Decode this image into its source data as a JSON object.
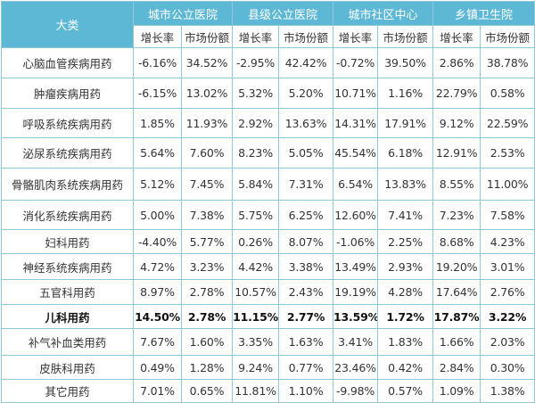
{
  "header": {
    "category_label": "大类",
    "groups": [
      "城市公立医院",
      "县级公立医院",
      "城市社区中心",
      "乡镇卫生院"
    ],
    "sub_labels": [
      "增长率",
      "市场份额"
    ],
    "color": "#5db8d6"
  },
  "rows": [
    {
      "name": "心脑血管疾病用药",
      "values": [
        "-6.16%",
        "34.52%",
        "-2.95%",
        "42.42%",
        "-0.72%",
        "39.50%",
        "2.86%",
        "38.78%"
      ]
    },
    {
      "name": "肿瘤疾病用药",
      "values": [
        "-6.15%",
        "13.02%",
        "5.32%",
        "5.20%",
        "10.71%",
        "1.16%",
        "22.79%",
        "0.58%"
      ]
    },
    {
      "name": "呼吸系统疾病用药",
      "values": [
        "1.85%",
        "11.93%",
        "2.92%",
        "13.63%",
        "14.31%",
        "17.91%",
        "9.12%",
        "22.59%"
      ]
    },
    {
      "name": "泌尿系统疾病用药",
      "values": [
        "5.64%",
        "7.60%",
        "8.23%",
        "5.05%",
        "45.54%",
        "6.18%",
        "12.91%",
        "2.53%"
      ]
    },
    {
      "name": "骨骼肌肉系统疾病用药",
      "values": [
        "5.12%",
        "7.45%",
        "5.84%",
        "7.31%",
        "6.54%",
        "13.83%",
        "8.55%",
        "11.00%"
      ]
    },
    {
      "name": "消化系统疾病用药",
      "values": [
        "5.00%",
        "7.38%",
        "5.75%",
        "6.25%",
        "12.60%",
        "7.41%",
        "7.23%",
        "7.58%"
      ]
    },
    {
      "name": "妇科用药",
      "values": [
        "-4.40%",
        "5.77%",
        "0.26%",
        "8.07%",
        "-1.06%",
        "2.25%",
        "8.68%",
        "4.23%"
      ]
    },
    {
      "name": "神经系统疾病用药",
      "values": [
        "4.72%",
        "3.23%",
        "4.42%",
        "3.38%",
        "13.49%",
        "2.93%",
        "19.20%",
        "3.01%"
      ]
    },
    {
      "name": "五官科用药",
      "values": [
        "8.97%",
        "2.78%",
        "10.57%",
        "2.43%",
        "19.19%",
        "4.28%",
        "17.64%",
        "2.76%"
      ]
    },
    {
      "name": "儿科用药",
      "bold": true,
      "values": [
        "14.50%",
        "2.78%",
        "11.15%",
        "2.77%",
        "13.59%",
        "1.72%",
        "17.87%",
        "3.22%"
      ]
    },
    {
      "name": "补气补血类用药",
      "values": [
        "7.67%",
        "1.60%",
        "3.35%",
        "1.63%",
        "3.41%",
        "1.83%",
        "1.66%",
        "2.03%"
      ]
    },
    {
      "name": "皮肤科用药",
      "values": [
        "0.49%",
        "1.28%",
        "9.24%",
        "0.77%",
        "23.46%",
        "0.42%",
        "2.84%",
        "0.30%"
      ]
    },
    {
      "name": "其它用药",
      "values": [
        "7.01%",
        "0.65%",
        "11.81%",
        "1.10%",
        "-9.98%",
        "0.57%",
        "1.09%",
        "1.38%"
      ]
    }
  ]
}
